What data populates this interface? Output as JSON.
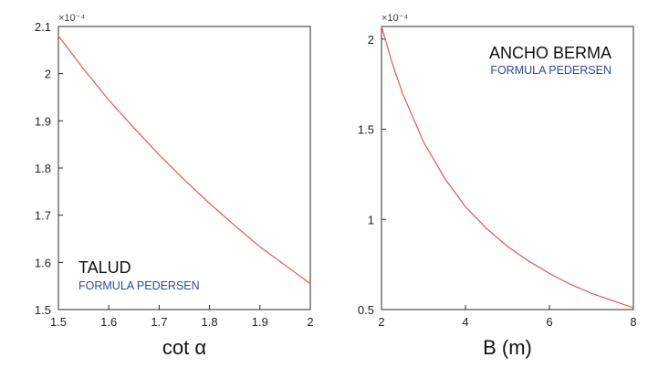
{
  "chart_data": [
    {
      "type": "line",
      "xlabel": "cot α",
      "ylabel": "",
      "exponent_label": "×10⁻⁴",
      "xlim": [
        1.5,
        2.0
      ],
      "ylim": [
        1.5,
        2.1
      ],
      "xticks": [
        1.5,
        1.6,
        1.7,
        1.8,
        1.9,
        2.0
      ],
      "xtick_labels": [
        "1.5",
        "1.6",
        "1.7",
        "1.8",
        "1.9",
        "2"
      ],
      "yticks": [
        1.5,
        1.6,
        1.7,
        1.8,
        1.9,
        2.0,
        2.1
      ],
      "ytick_labels": [
        "1.5",
        "1.6",
        "1.7",
        "1.8",
        "1.9",
        "2",
        "2.1"
      ],
      "annotation": {
        "title": "TALUD",
        "subtitle": "FORMULA PEDERSEN",
        "position": "bottom-left"
      },
      "grid": false,
      "line_color": "#e05a4f",
      "series": [
        {
          "x": [
            1.5,
            1.55,
            1.6,
            1.65,
            1.7,
            1.75,
            1.8,
            1.85,
            1.9,
            1.95,
            2.0
          ],
          "values": [
            2.08,
            2.01,
            1.944,
            1.885,
            1.828,
            1.775,
            1.725,
            1.678,
            1.633,
            1.594,
            1.555
          ]
        }
      ]
    },
    {
      "type": "line",
      "xlabel": "B (m)",
      "ylabel": "",
      "exponent_label": "×10⁻⁴",
      "xlim": [
        2,
        8
      ],
      "ylim": [
        0.5,
        2.07
      ],
      "xticks": [
        2,
        4,
        6,
        8
      ],
      "xtick_labels": [
        "2",
        "4",
        "6",
        "8"
      ],
      "yticks": [
        0.5,
        1.0,
        1.5,
        2.0
      ],
      "ytick_labels": [
        "0.5",
        "1",
        "1.5",
        "2"
      ],
      "annotation": {
        "title": "ANCHO BERMA",
        "subtitle": "FORMULA PEDERSEN",
        "position": "top-right"
      },
      "grid": false,
      "line_color": "#e05a4f",
      "series": [
        {
          "x": [
            2,
            2.25,
            2.5,
            3,
            3.5,
            4,
            4.5,
            5,
            5.5,
            6,
            6.5,
            7,
            7.5,
            8
          ],
          "values": [
            2.07,
            1.87,
            1.7,
            1.43,
            1.23,
            1.07,
            0.95,
            0.85,
            0.77,
            0.7,
            0.64,
            0.59,
            0.55,
            0.51
          ]
        }
      ]
    }
  ]
}
